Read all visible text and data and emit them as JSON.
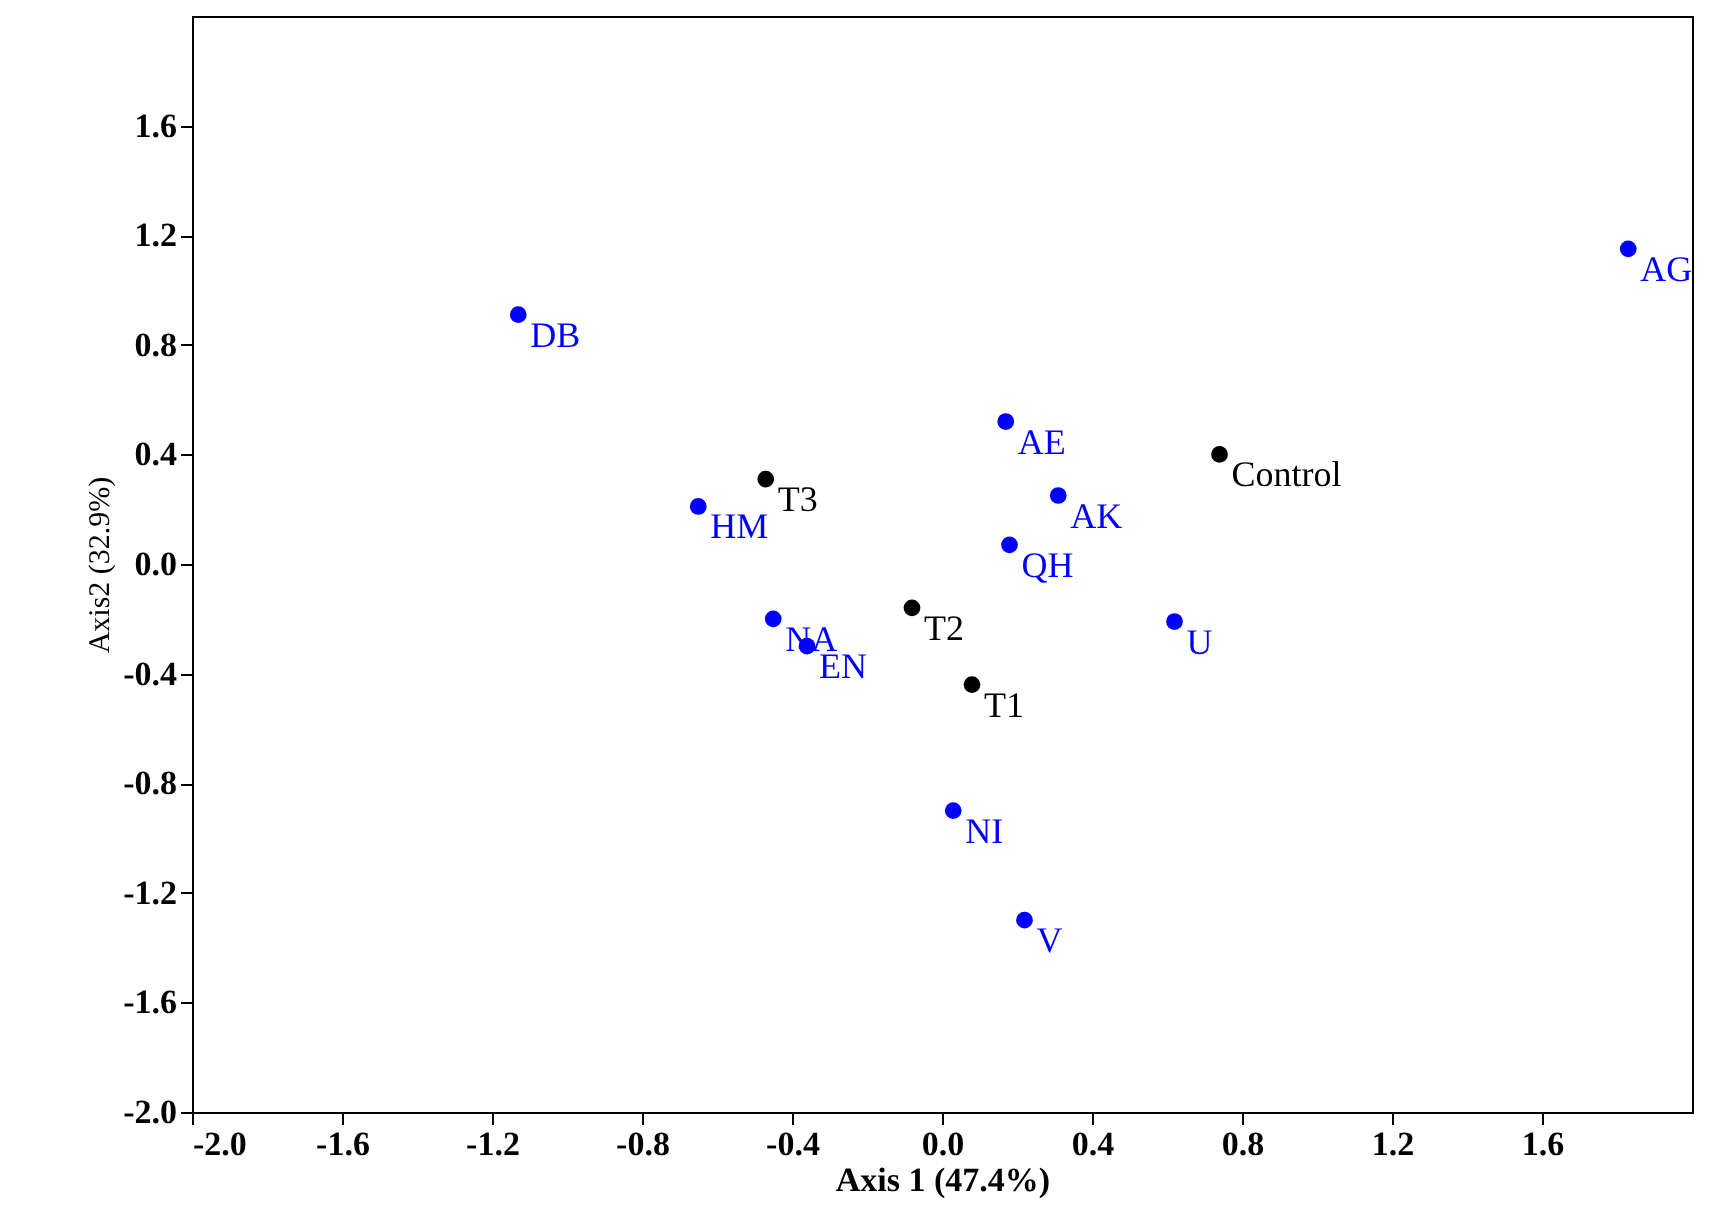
{
  "chart_data": {
    "type": "scatter",
    "xlabel": "Axis 1 (47.4%)",
    "ylabel": "Axis2 (32.9%)",
    "xlim": [
      -2,
      2
    ],
    "ylim": [
      -2,
      2
    ],
    "xticks": [
      {
        "value": -2,
        "label": "-2.0"
      },
      {
        "value": -1.6,
        "label": "-1.6"
      },
      {
        "value": -1.2,
        "label": "-1.2"
      },
      {
        "value": -0.8,
        "label": "-0.8"
      },
      {
        "value": -0.4,
        "label": "-0.4"
      },
      {
        "value": 0,
        "label": "0.0"
      },
      {
        "value": 0.4,
        "label": "0.4"
      },
      {
        "value": 0.8,
        "label": "0.8"
      },
      {
        "value": 1.2,
        "label": "1.2"
      },
      {
        "value": 1.6,
        "label": "1.6"
      }
    ],
    "yticks": [
      {
        "value": -2,
        "label": "-2.0"
      },
      {
        "value": -1.6,
        "label": "-1.6"
      },
      {
        "value": -1.2,
        "label": "-1.2"
      },
      {
        "value": -0.8,
        "label": "-0.8"
      },
      {
        "value": -0.4,
        "label": "-0.4"
      },
      {
        "value": 0,
        "label": "0.0"
      },
      {
        "value": 0.4,
        "label": "0.4"
      },
      {
        "value": 0.8,
        "label": "0.8"
      },
      {
        "value": 1.2,
        "label": "1.2"
      },
      {
        "value": 1.6,
        "label": "1.6"
      }
    ],
    "marker": "circle",
    "grid": false,
    "series": [
      {
        "color": "#0000ff",
        "x": [
          1.83,
          -1.13,
          -0.65,
          0.17,
          0.31,
          0.18,
          0.62,
          -0.45,
          -0.36,
          0.03,
          0.22
        ],
        "values": [
          1.15,
          0.91,
          0.21,
          0.52,
          0.25,
          0.07,
          -0.21,
          -0.2,
          -0.3,
          -0.9,
          -1.3
        ]
      },
      {
        "color": "#000000",
        "x": [
          0.74,
          -0.47,
          -0.08,
          0.08
        ],
        "values": [
          0.4,
          0.31,
          -0.16,
          -0.44
        ]
      }
    ],
    "annotations": [
      {
        "text": "AG",
        "x": 1.83,
        "y": 1.15
      },
      {
        "text": "DB",
        "x": -1.13,
        "y": 0.91
      },
      {
        "text": "HM",
        "x": -0.65,
        "y": 0.21
      },
      {
        "text": "AE",
        "x": 0.17,
        "y": 0.52
      },
      {
        "text": "AK",
        "x": 0.31,
        "y": 0.25
      },
      {
        "text": "QH",
        "x": 0.18,
        "y": 0.07
      },
      {
        "text": "U",
        "x": 0.62,
        "y": -0.21
      },
      {
        "text": "NA",
        "x": -0.45,
        "y": -0.2
      },
      {
        "text": "EN",
        "x": -0.36,
        "y": -0.3
      },
      {
        "text": "NI",
        "x": 0.03,
        "y": -0.9
      },
      {
        "text": "V",
        "x": 0.22,
        "y": -1.3
      },
      {
        "text": "Control",
        "x": 0.74,
        "y": 0.4
      },
      {
        "text": "T3",
        "x": -0.47,
        "y": 0.31
      },
      {
        "text": "T2",
        "x": -0.08,
        "y": -0.16
      },
      {
        "text": "T1",
        "x": 0.08,
        "y": -0.44
      }
    ]
  }
}
